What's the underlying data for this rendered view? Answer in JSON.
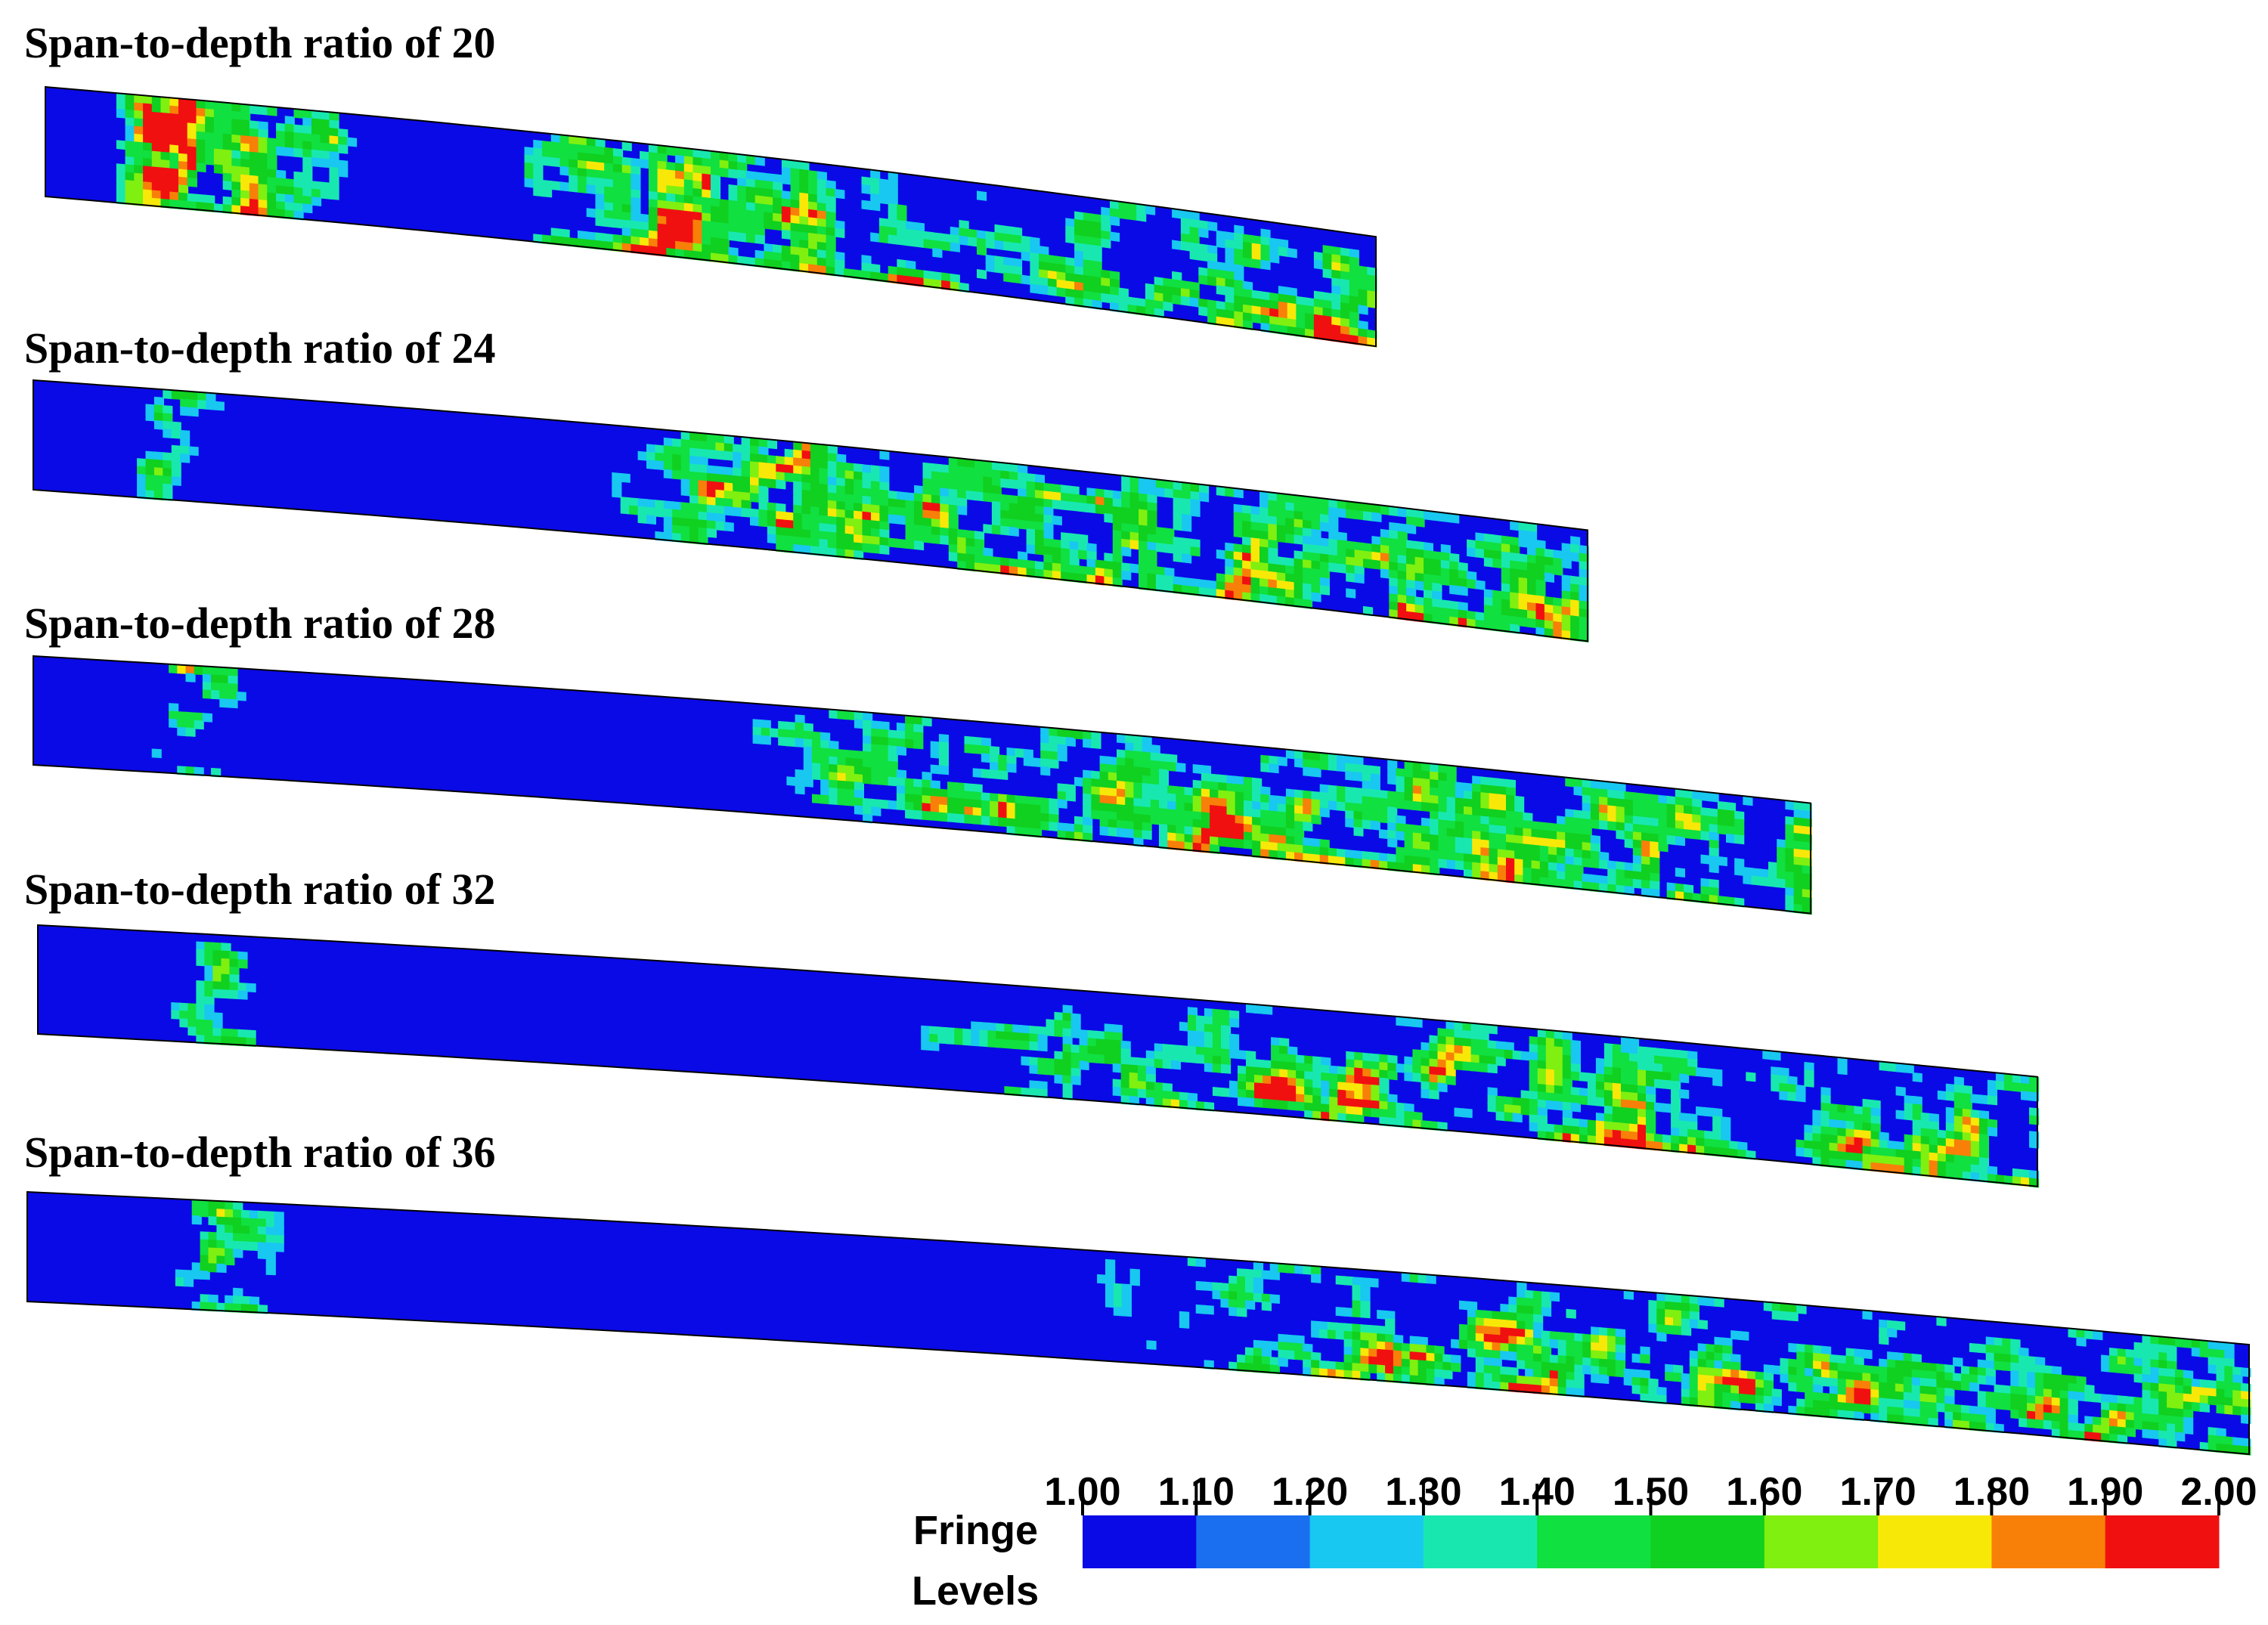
{
  "beams": [
    {
      "label": "Span-to-depth ratio of 20"
    },
    {
      "label": "Span-to-depth ratio of 24"
    },
    {
      "label": "Span-to-depth ratio of 28"
    },
    {
      "label": "Span-to-depth ratio of 32"
    },
    {
      "label": "Span-to-depth ratio of 36"
    }
  ],
  "legend": {
    "title_line1": "Fringe",
    "title_line2": "Levels",
    "ticks": [
      "1.00",
      "1.10",
      "1.20",
      "1.30",
      "1.40",
      "1.50",
      "1.60",
      "1.70",
      "1.80",
      "1.90",
      "2.00"
    ],
    "colors": [
      "#0a0ae6",
      "#1a6ef0",
      "#18c8f0",
      "#18e8b0",
      "#10e040",
      "#10d020",
      "#80f010",
      "#f8e808",
      "#f88008",
      "#f01010"
    ]
  }
}
